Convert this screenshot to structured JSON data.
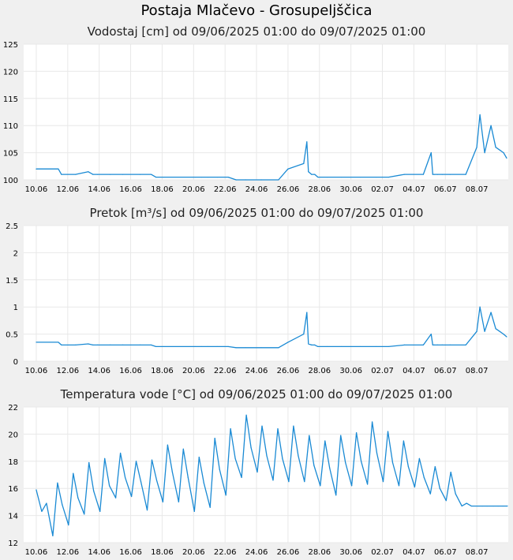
{
  "page": {
    "title": "Postaja Mlačevo - Grosupeljščica"
  },
  "colors": {
    "line": "#1a8ad4",
    "plot_bg": "#ffffff",
    "grid": "#e8e8e8",
    "page_bg": "#f0f0f0"
  },
  "chart_data": [
    {
      "type": "line",
      "title": "Vodostaj [cm] od 09/06/2025 01:00 do 09/07/2025 01:00",
      "x_ticks": [
        "10.06",
        "12.06",
        "14.06",
        "16.06",
        "18.06",
        "20.06",
        "22.06",
        "24.06",
        "26.06",
        "28.06",
        "30.06",
        "02.07",
        "04.07",
        "06.07",
        "08.07"
      ],
      "y_ticks": [
        "100",
        "105",
        "110",
        "115",
        "120",
        "125"
      ],
      "ylim": [
        100,
        125
      ],
      "grid": true,
      "series": [
        {
          "x": [
            0,
            1.4,
            1.6,
            2.5,
            3.3,
            3.6,
            3.9,
            4.7,
            5.5,
            6.6,
            7.3,
            7.6,
            8.1,
            10.1,
            10.5,
            10.9,
            11.5,
            12.2,
            12.7,
            13.3,
            14.3,
            15.4,
            16.0,
            17.0,
            17.2,
            17.3,
            17.5,
            17.7,
            17.9,
            18.5,
            19.4,
            20.6,
            21.6,
            22.4,
            23.4,
            24.6,
            25.1,
            25.2,
            25.3,
            25.5,
            25.8,
            26.3,
            27.3,
            28.0,
            28.2,
            28.5,
            28.9,
            29.2,
            29.7,
            29.9
          ],
          "y": [
            102,
            102,
            101,
            101,
            101.5,
            101,
            101,
            101,
            101,
            101,
            101,
            100.5,
            100.5,
            100.5,
            100.5,
            100.5,
            100.5,
            100.5,
            100,
            100,
            100,
            100,
            102,
            103,
            107,
            101.5,
            101,
            101,
            100.5,
            100.5,
            100.5,
            100.5,
            100.5,
            100.5,
            101,
            101,
            105,
            101,
            101,
            101,
            101,
            101,
            101,
            106,
            112,
            105,
            110,
            106,
            105,
            104
          ]
        }
      ]
    },
    {
      "type": "line",
      "title": "Pretok [m³/s] od 09/06/2025 01:00 do 09/07/2025 01:00",
      "x_ticks": [
        "10.06",
        "12.06",
        "14.06",
        "16.06",
        "18.06",
        "20.06",
        "22.06",
        "24.06",
        "26.06",
        "28.06",
        "30.06",
        "02.07",
        "04.07",
        "06.07",
        "08.07"
      ],
      "y_ticks": [
        "0",
        "0.5",
        "1",
        "1.5",
        "2",
        "2.5"
      ],
      "ylim": [
        0,
        2.5
      ],
      "grid": true,
      "series": [
        {
          "x": [
            0,
            1.4,
            1.6,
            2.5,
            3.3,
            3.6,
            3.9,
            4.7,
            5.5,
            6.6,
            7.3,
            7.6,
            8.1,
            10.1,
            10.5,
            10.9,
            11.5,
            12.2,
            12.7,
            13.3,
            14.3,
            15.4,
            16.0,
            17.0,
            17.2,
            17.3,
            17.5,
            17.7,
            17.9,
            18.5,
            19.4,
            20.6,
            21.6,
            22.4,
            23.4,
            24.6,
            25.1,
            25.2,
            25.3,
            25.5,
            25.8,
            26.3,
            27.3,
            28.0,
            28.2,
            28.5,
            28.9,
            29.2,
            29.7,
            29.9
          ],
          "y": [
            0.35,
            0.35,
            0.3,
            0.3,
            0.32,
            0.3,
            0.3,
            0.3,
            0.3,
            0.3,
            0.3,
            0.27,
            0.27,
            0.27,
            0.27,
            0.27,
            0.27,
            0.27,
            0.25,
            0.25,
            0.25,
            0.25,
            0.35,
            0.5,
            0.9,
            0.32,
            0.3,
            0.3,
            0.27,
            0.27,
            0.27,
            0.27,
            0.27,
            0.27,
            0.3,
            0.3,
            0.5,
            0.3,
            0.3,
            0.3,
            0.3,
            0.3,
            0.3,
            0.55,
            1.0,
            0.55,
            0.9,
            0.6,
            0.5,
            0.45
          ]
        }
      ]
    },
    {
      "type": "line",
      "title": "Temperatura vode [°C] od 09/06/2025 01:00 do 09/07/2025 01:00",
      "x_ticks": [
        "10.06",
        "12.06",
        "14.06",
        "16.06",
        "18.06",
        "20.06",
        "22.06",
        "24.06",
        "26.06",
        "28.06",
        "30.06",
        "02.07",
        "04.07",
        "06.07",
        "08.07"
      ],
      "y_ticks": [
        "12",
        "14",
        "16",
        "18",
        "20",
        "22"
      ],
      "ylim": [
        12,
        22
      ],
      "grid": true,
      "series": [
        {
          "x": [
            0,
            0.35,
            0.65,
            1.05,
            1.35,
            1.65,
            2.05,
            2.35,
            2.65,
            3.05,
            3.35,
            3.65,
            4.05,
            4.35,
            4.65,
            5.05,
            5.35,
            5.65,
            6.05,
            6.35,
            6.65,
            7.05,
            7.35,
            7.65,
            8.05,
            8.35,
            8.65,
            9.05,
            9.35,
            9.65,
            10.05,
            10.35,
            10.65,
            11.05,
            11.35,
            11.65,
            12.05,
            12.35,
            12.65,
            13.05,
            13.35,
            13.65,
            14.05,
            14.35,
            14.65,
            15.05,
            15.35,
            15.65,
            16.05,
            16.35,
            16.65,
            17.05,
            17.35,
            17.65,
            18.05,
            18.35,
            18.65,
            19.05,
            19.35,
            19.65,
            20.05,
            20.35,
            20.65,
            21.05,
            21.35,
            21.65,
            22.05,
            22.35,
            22.65,
            23.05,
            23.35,
            23.65,
            24.05,
            24.35,
            24.65,
            25.05,
            25.35,
            25.65,
            26.05,
            26.35,
            26.65,
            27.05,
            27.35,
            27.65,
            28.05,
            28.35,
            28.65,
            29.05,
            29.35,
            29.65,
            29.95
          ],
          "y": [
            15.9,
            14.3,
            14.9,
            12.5,
            16.4,
            14.8,
            13.3,
            17.1,
            15.3,
            14.1,
            17.9,
            15.8,
            14.3,
            18.2,
            16.2,
            15.3,
            18.6,
            16.8,
            15.4,
            18.0,
            16.5,
            14.4,
            18.1,
            16.6,
            15.0,
            19.2,
            17.2,
            15.0,
            18.9,
            16.8,
            14.3,
            18.3,
            16.4,
            14.6,
            19.7,
            17.4,
            15.5,
            20.4,
            18.2,
            16.8,
            21.4,
            19.0,
            17.2,
            20.6,
            18.4,
            16.6,
            20.4,
            18.2,
            16.5,
            20.6,
            18.4,
            16.5,
            19.9,
            17.7,
            16.2,
            19.5,
            17.5,
            15.5,
            19.9,
            17.9,
            16.2,
            20.1,
            18.0,
            16.3,
            20.9,
            18.6,
            16.5,
            20.2,
            17.9,
            16.2,
            19.5,
            17.6,
            16.1,
            18.2,
            16.8,
            15.6,
            17.6,
            16.0,
            15.1,
            17.2,
            15.6,
            14.7,
            14.9,
            14.7,
            14.7,
            14.7,
            14.7,
            14.7,
            14.7,
            14.7,
            14.7
          ]
        }
      ]
    }
  ]
}
